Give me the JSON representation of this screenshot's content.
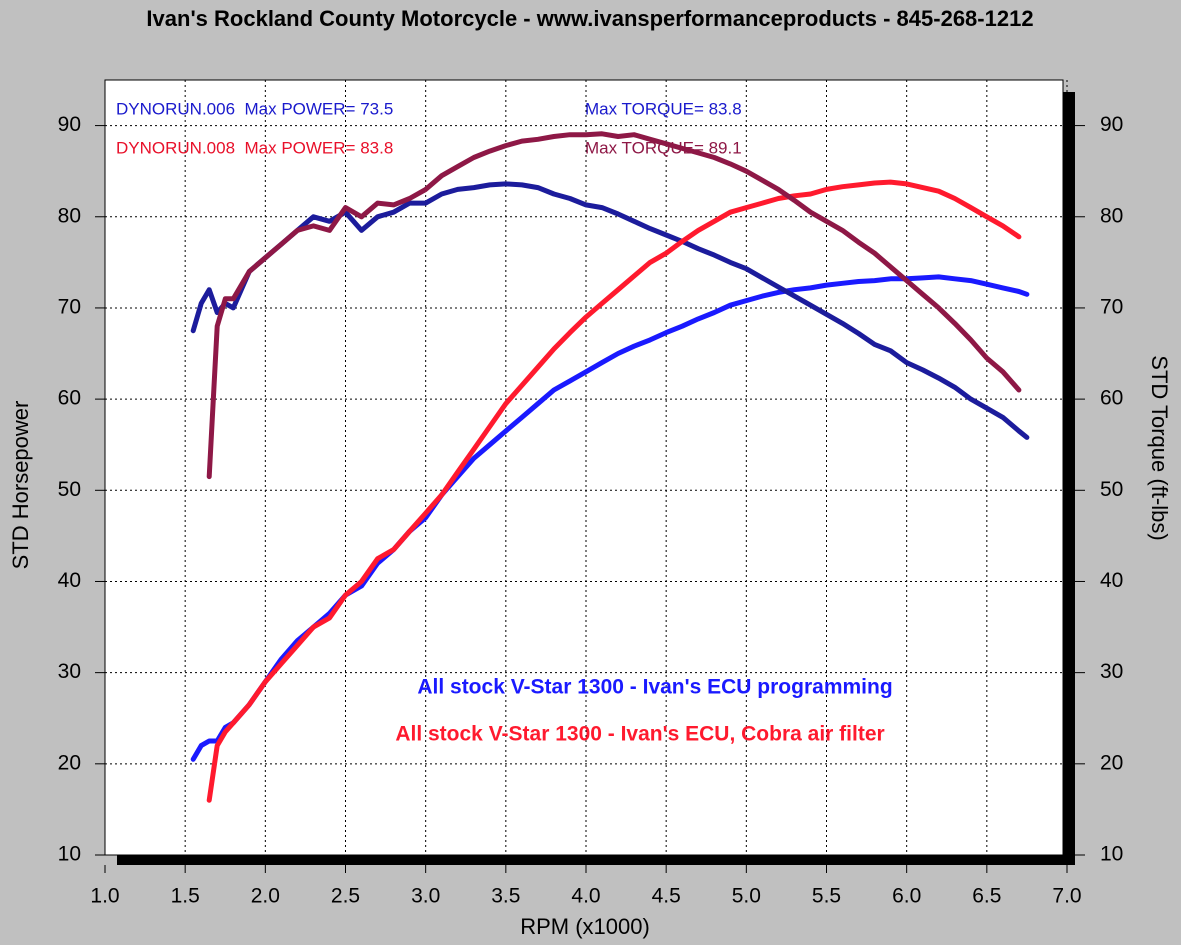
{
  "chart_data": {
    "type": "line",
    "title": "Ivan's Rockland County Motorcycle - www.ivansperformanceproducts - 845-268-1212",
    "x_label": "RPM (x1000)",
    "y_label": "STD Horsepower",
    "y2_label": "STD Torque (ft-lbs)",
    "x": [
      1.55,
      1.6,
      1.65,
      1.7,
      1.75,
      1.8,
      1.9,
      2.0,
      2.1,
      2.2,
      2.3,
      2.4,
      2.5,
      2.6,
      2.7,
      2.8,
      2.9,
      3.0,
      3.1,
      3.2,
      3.3,
      3.4,
      3.5,
      3.6,
      3.7,
      3.8,
      3.9,
      4.0,
      4.1,
      4.2,
      4.3,
      4.4,
      4.5,
      4.6,
      4.7,
      4.8,
      4.9,
      5.0,
      5.1,
      5.2,
      5.3,
      5.4,
      5.5,
      5.6,
      5.7,
      5.8,
      5.9,
      6.0,
      6.1,
      6.2,
      6.3,
      6.4,
      6.5,
      6.6,
      6.7,
      6.75
    ],
    "series": [
      {
        "name": "DYNORUN.006 power",
        "color": "#1a1aff",
        "values": [
          20.5,
          22,
          22.5,
          22.5,
          24,
          24.5,
          26.5,
          29,
          31.5,
          33.5,
          35,
          36.5,
          38.5,
          39.5,
          42,
          43.5,
          45.5,
          47,
          49.5,
          51.5,
          53.5,
          55,
          56.5,
          58,
          59.5,
          61,
          62,
          63,
          64,
          65,
          65.8,
          66.5,
          67.3,
          68,
          68.8,
          69.5,
          70.3,
          70.8,
          71.3,
          71.7,
          72,
          72.2,
          72.5,
          72.7,
          72.9,
          73,
          73.2,
          73.2,
          73.3,
          73.4,
          73.2,
          73,
          72.6,
          72.2,
          71.8,
          71.5
        ]
      },
      {
        "name": "DYNORUN.006 torque",
        "color": "#1c1c9c",
        "axis": "y2",
        "values": [
          67.5,
          70.5,
          72,
          69.5,
          70.5,
          70,
          74,
          75.5,
          77,
          78.5,
          80,
          79.5,
          80.5,
          78.5,
          80,
          80.5,
          81.5,
          81.5,
          82.5,
          83,
          83.2,
          83.5,
          83.6,
          83.5,
          83.2,
          82.5,
          82,
          81.3,
          81,
          80.3,
          79.5,
          78.7,
          78,
          77.3,
          76.5,
          75.8,
          75,
          74.3,
          73.3,
          72.3,
          71.3,
          70.3,
          69.3,
          68.3,
          67.2,
          66,
          65.3,
          64,
          63.2,
          62.3,
          61.3,
          60,
          59,
          58,
          56.5,
          55.8
        ]
      },
      {
        "name": "DYNORUN.008 power",
        "color": "#ff1a2e",
        "values": [
          null,
          null,
          16,
          22,
          23.5,
          24.5,
          26.5,
          29,
          31,
          33,
          35,
          36,
          38.5,
          40,
          42.5,
          43.5,
          45.5,
          47.5,
          49.5,
          52,
          54.5,
          57,
          59.5,
          61.5,
          63.5,
          65.5,
          67.3,
          69,
          70.5,
          72,
          73.5,
          75,
          76,
          77.3,
          78.5,
          79.5,
          80.5,
          81,
          81.5,
          82,
          82.3,
          82.5,
          83,
          83.3,
          83.5,
          83.7,
          83.8,
          83.6,
          83.2,
          82.8,
          82,
          81,
          80,
          79,
          77.8,
          null
        ]
      },
      {
        "name": "DYNORUN.008 torque",
        "color": "#8e1846",
        "axis": "y2",
        "values": [
          null,
          null,
          51.5,
          68,
          71,
          71,
          74,
          75.5,
          77,
          78.5,
          79,
          78.5,
          81,
          80,
          81.5,
          81.3,
          82,
          83,
          84.5,
          85.5,
          86.5,
          87.2,
          87.8,
          88.3,
          88.5,
          88.8,
          89,
          89,
          89.1,
          88.8,
          89,
          88.5,
          88,
          87.5,
          87,
          86.5,
          85.8,
          85,
          84,
          83,
          81.8,
          80.5,
          79.5,
          78.5,
          77.2,
          76,
          74.5,
          73,
          71.5,
          70,
          68.3,
          66.5,
          64.5,
          63,
          61,
          null
        ]
      }
    ],
    "xlim": [
      1,
      7.0
    ],
    "xticks": [
      {
        "value": 1,
        "label": "1.0"
      },
      1.5,
      {
        "value": 2,
        "label": "2.0"
      },
      2.5,
      {
        "value": 3,
        "label": "3.0"
      },
      3.5,
      {
        "value": 4,
        "label": "4.0"
      },
      4.5,
      {
        "value": 5,
        "label": "5.0"
      },
      5.5,
      {
        "value": 6,
        "label": "6.0"
      },
      6.5,
      {
        "value": 7,
        "label": "7.0"
      }
    ],
    "ylim": [
      10,
      95
    ],
    "yticks": [
      10,
      20,
      30,
      40,
      50,
      60,
      70,
      80,
      90
    ],
    "y2lim": [
      10,
      95
    ],
    "y2ticks": [
      10,
      20,
      30,
      40,
      50,
      60,
      70,
      80,
      90
    ],
    "grid": true,
    "annotations": [
      {
        "text": "DYNORUN.006  Max POWER= 73.5",
        "color": "#1a1acc"
      },
      {
        "text": "Max TORQUE= 83.8",
        "color": "#1a1acc"
      },
      {
        "text": "DYNORUN.008  Max POWER= 83.8",
        "color": "#e8102a"
      },
      {
        "text": "Max TORQUE= 89.1",
        "color": "#8e1846"
      },
      {
        "text": "All stock V-Star 1300 - Ivan's ECU programming",
        "color": "#1a1aff"
      },
      {
        "text": "All stock V-Star 1300 - Ivan's ECU, Cobra air filter",
        "color": "#ff1a2e"
      }
    ]
  }
}
